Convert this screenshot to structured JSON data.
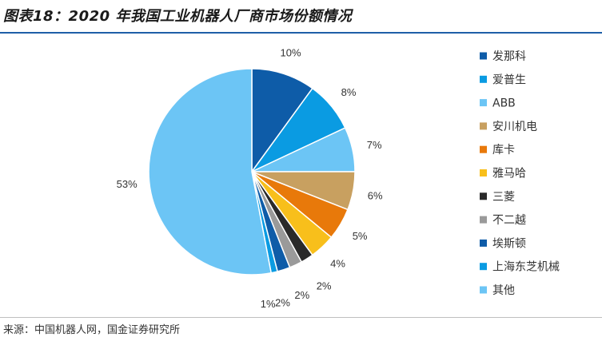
{
  "header": {
    "title": "图表18：2020 年我国工业机器人厂商市场份额情况"
  },
  "footer": {
    "source": "来源：中国机器人网，国金证券研究所"
  },
  "chart_data": {
    "type": "pie",
    "title": "",
    "legend_position": "right",
    "start_angle": "12-o'clock, clockwise",
    "slices": [
      {
        "label": "发那科",
        "value": 10,
        "display": "10%",
        "color": "#0e5ca8"
      },
      {
        "label": "爱普生",
        "value": 8,
        "display": "8%",
        "color": "#0a9be2"
      },
      {
        "label": "ABB",
        "value": 7,
        "display": "7%",
        "color": "#6cc5f5"
      },
      {
        "label": "安川机电",
        "value": 6,
        "display": "6%",
        "color": "#c8a060"
      },
      {
        "label": "库卡",
        "value": 5,
        "display": "5%",
        "color": "#e8790a"
      },
      {
        "label": "雅马哈",
        "value": 4,
        "display": "4%",
        "color": "#f8bf1b"
      },
      {
        "label": "三菱",
        "value": 2,
        "display": "2%",
        "color": "#2a2a2a"
      },
      {
        "label": "不二越",
        "value": 2,
        "display": "2%",
        "color": "#9a9a9a"
      },
      {
        "label": "埃斯顿",
        "value": 2,
        "display": "2%",
        "color": "#0e5ca8"
      },
      {
        "label": "上海东芝机械",
        "value": 1,
        "display": "1%",
        "color": "#0a9be2"
      },
      {
        "label": "其他",
        "value": 53,
        "display": "53%",
        "color": "#6cc5f5"
      }
    ]
  }
}
